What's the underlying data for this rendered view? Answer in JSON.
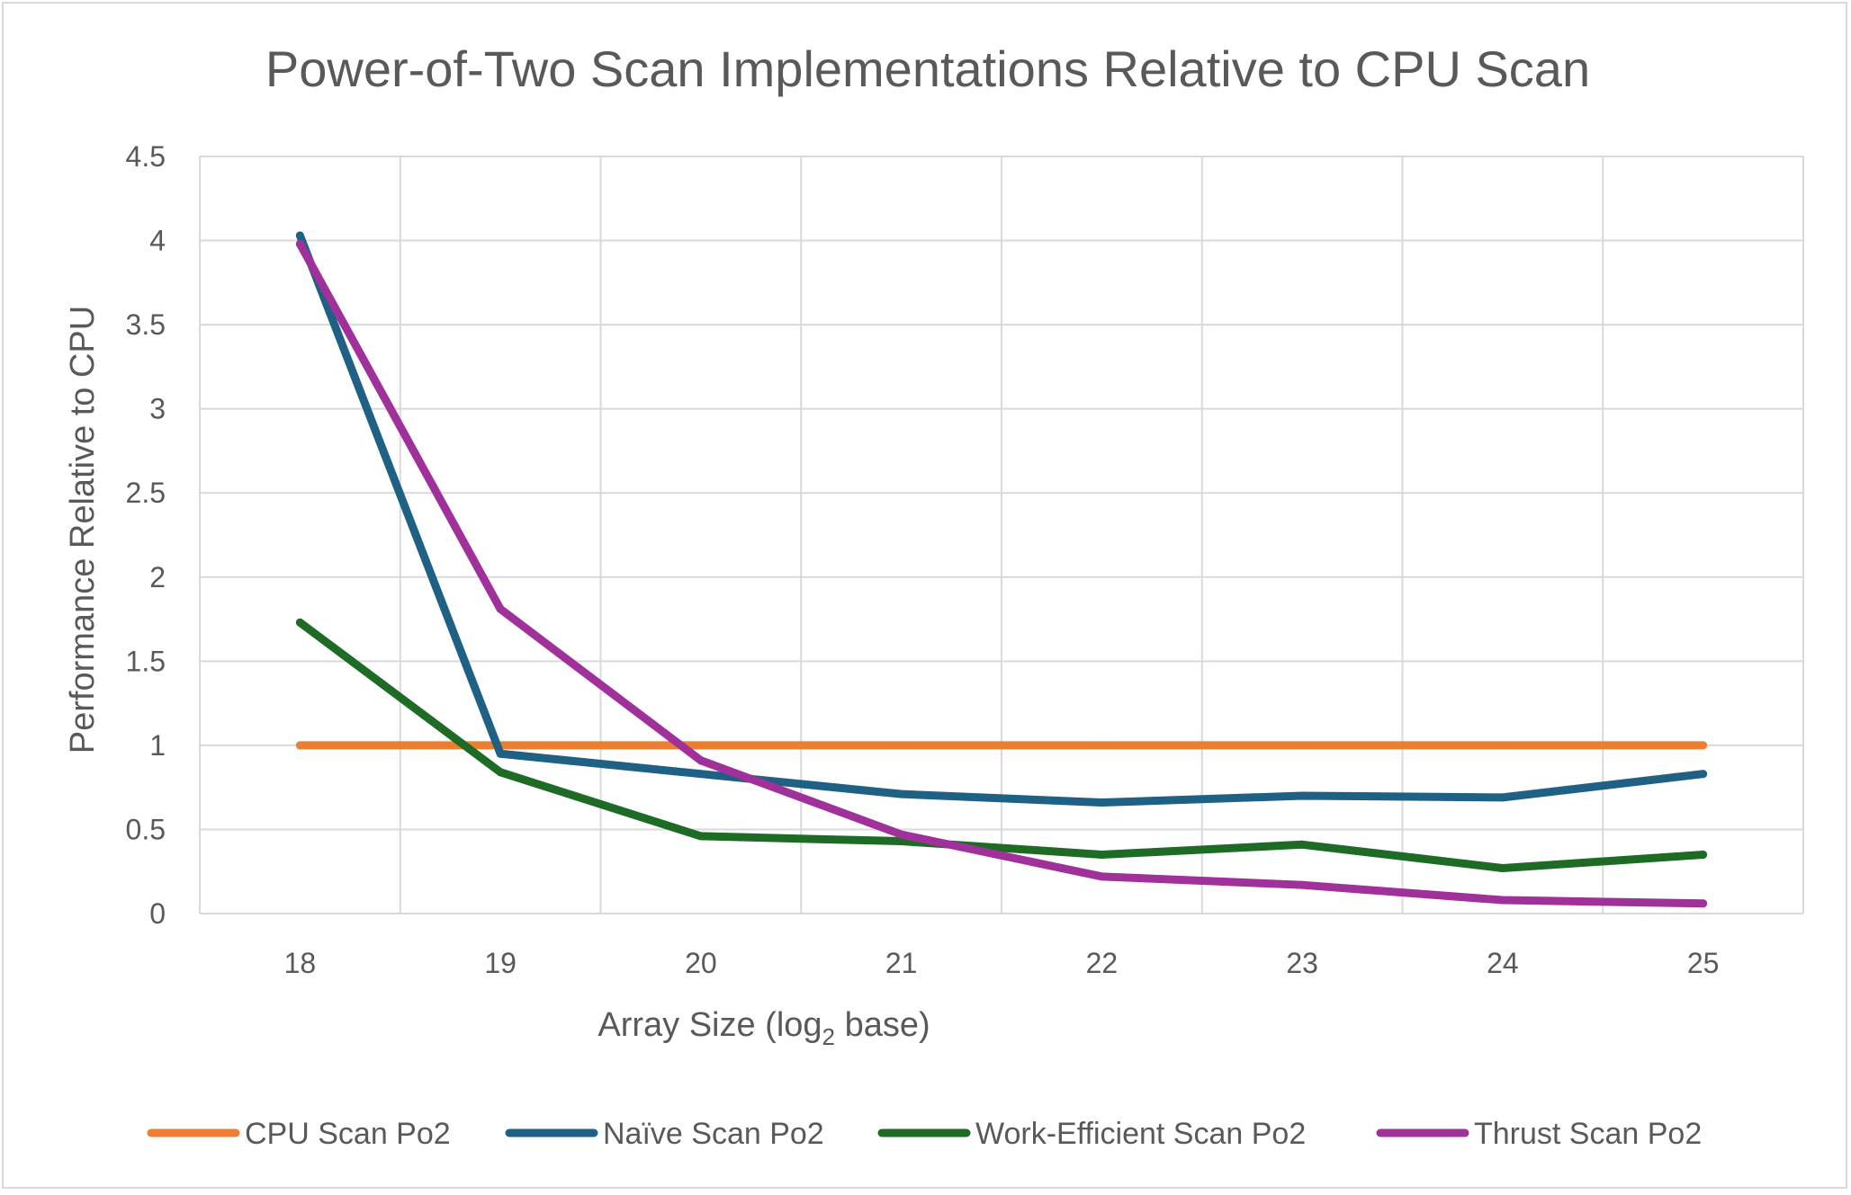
{
  "chart_data": {
    "type": "line",
    "title": "Power-of-Two Scan Implementations Relative to CPU Scan",
    "xlabel_main": "Array Size (log",
    "xlabel_sub": "2",
    "xlabel_tail": " base)",
    "ylabel": "Performance Relative to CPU",
    "categories": [
      "18",
      "19",
      "20",
      "21",
      "22",
      "23",
      "24",
      "25"
    ],
    "y_ticks": [
      "0",
      "0.5",
      "1",
      "1.5",
      "2",
      "2.5",
      "3",
      "3.5",
      "4",
      "4.5"
    ],
    "ylim": [
      0,
      4.5
    ],
    "grid": true,
    "legend_position": "bottom",
    "series": [
      {
        "name": "CPU Scan Po2",
        "color": "#ed7d31",
        "values": [
          1,
          1,
          1,
          1,
          1,
          1,
          1,
          1
        ]
      },
      {
        "name": "Naïve Scan Po2",
        "color": "#1f6185",
        "values": [
          4.03,
          0.95,
          0.83,
          0.71,
          0.66,
          0.7,
          0.69,
          0.83
        ]
      },
      {
        "name": "Work-Efficient Scan Po2",
        "color": "#1d6b24",
        "values": [
          1.73,
          0.84,
          0.46,
          0.43,
          0.35,
          0.41,
          0.27,
          0.35
        ]
      },
      {
        "name": "Thrust Scan Po2",
        "color": "#a0309a",
        "values": [
          3.98,
          1.81,
          0.91,
          0.47,
          0.22,
          0.17,
          0.08,
          0.06
        ]
      }
    ]
  }
}
